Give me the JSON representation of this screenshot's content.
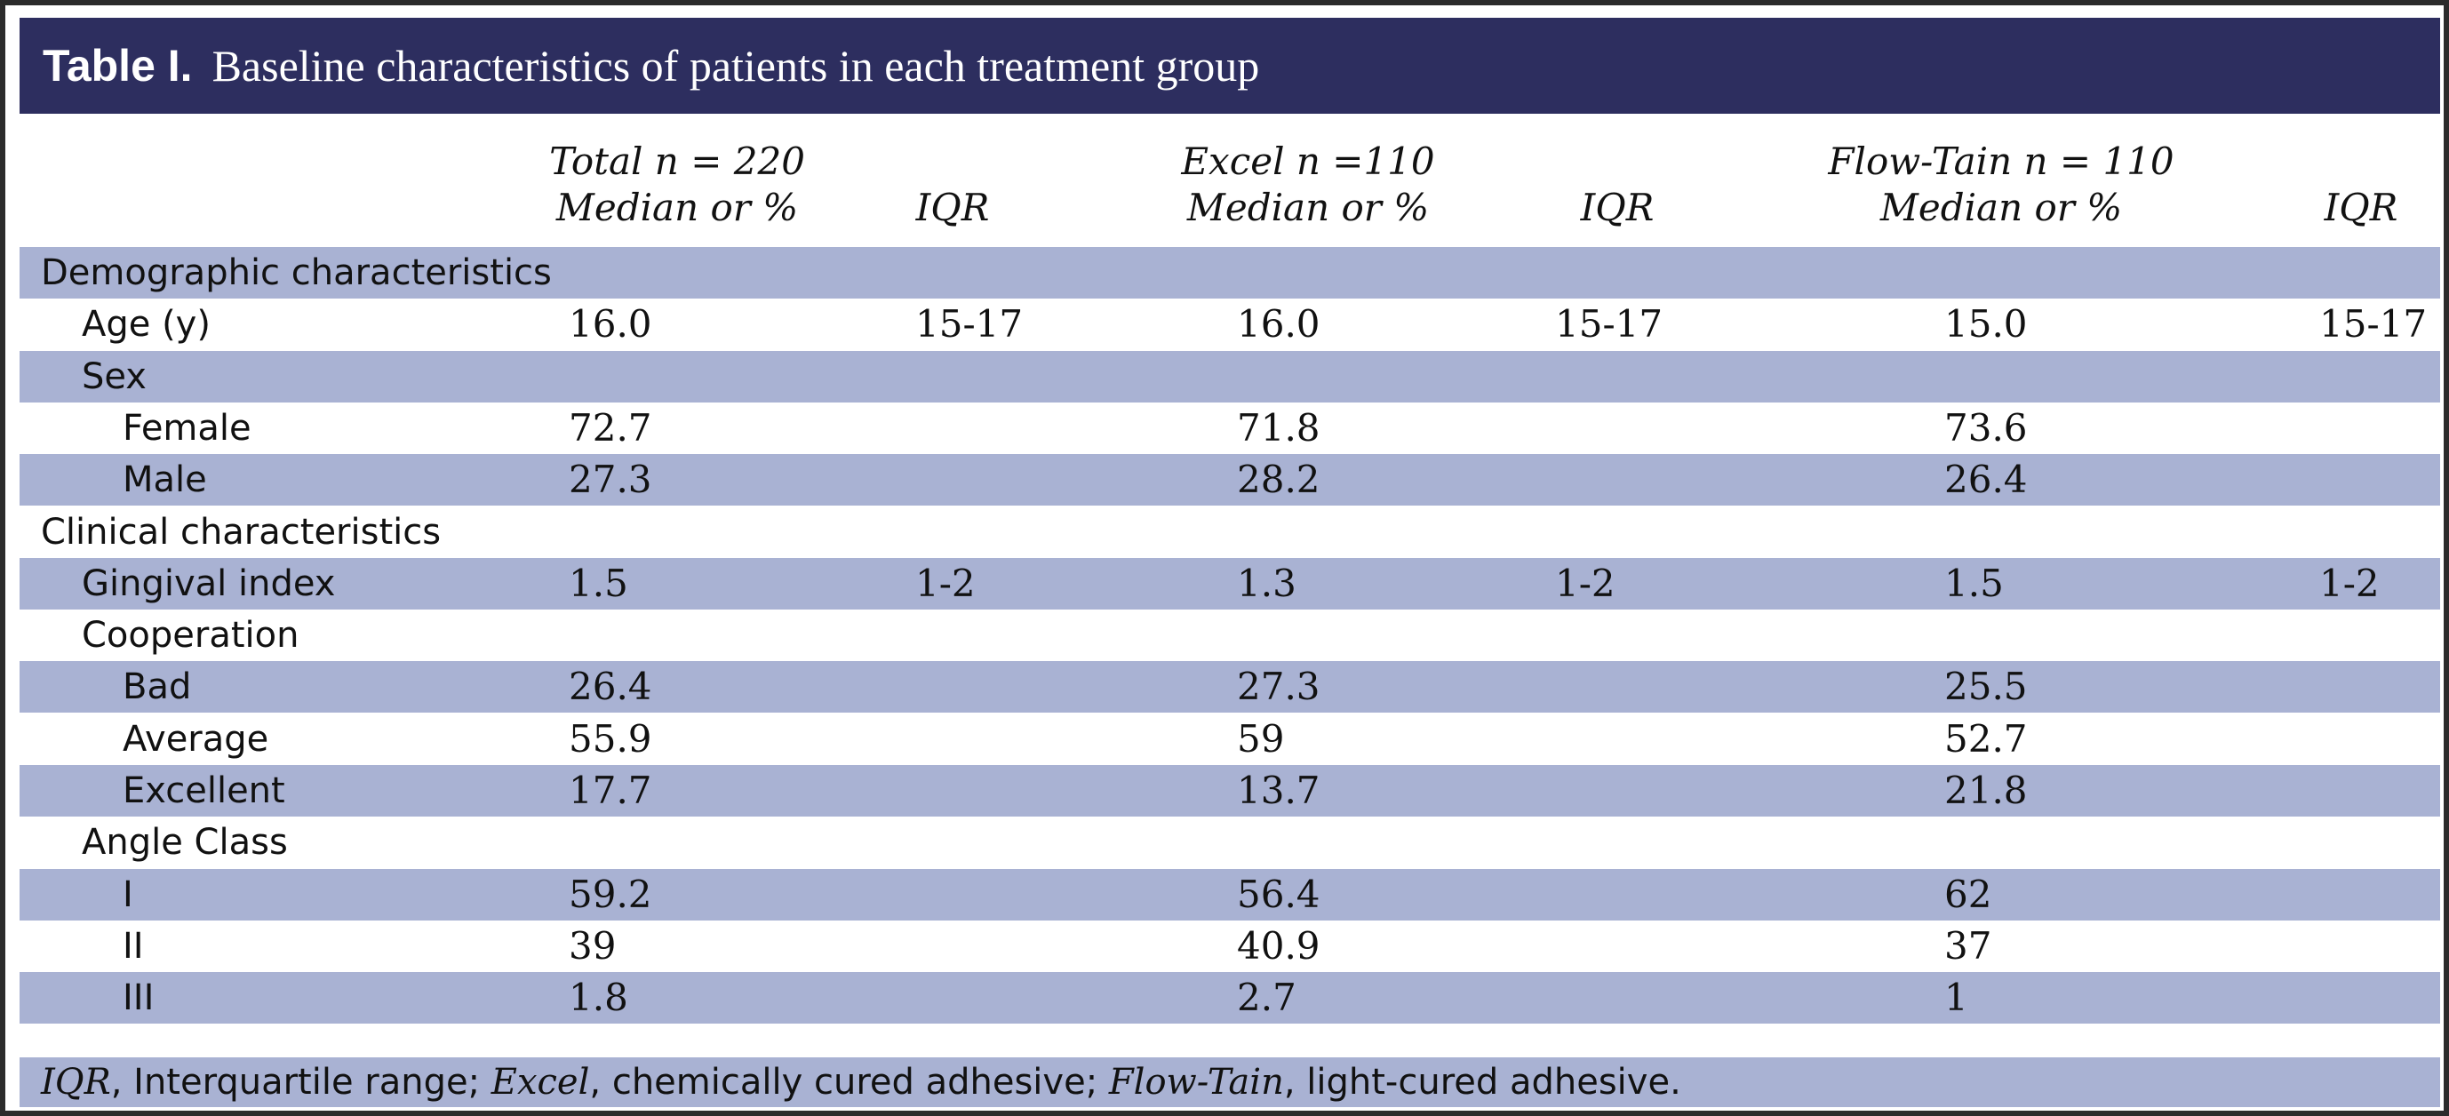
{
  "table": {
    "label": "Table I.",
    "title": "Baseline characteristics of patients in each treatment group",
    "columns": {
      "total": {
        "line1": "Total n = 220",
        "line2": "Median or %"
      },
      "total_iqr": "IQR",
      "excel": {
        "line1": "Excel n =110",
        "line2": "Median or %"
      },
      "excel_iqr": "IQR",
      "flow": {
        "line1": "Flow-Tain n = 110",
        "line2": "Median or %"
      },
      "flow_iqr": "IQR"
    },
    "rows": [
      {
        "label": "Demographic characteristics",
        "level": 0,
        "total": "",
        "total_iqr": "",
        "excel": "",
        "excel_iqr": "",
        "flow": "",
        "flow_iqr": ""
      },
      {
        "label": "Age (y)",
        "level": 1,
        "total": "16.0",
        "total_iqr": "15-17",
        "excel": "16.0",
        "excel_iqr": "15-17",
        "flow": "15.0",
        "flow_iqr": "15-17"
      },
      {
        "label": "Sex",
        "level": 1,
        "total": "",
        "total_iqr": "",
        "excel": "",
        "excel_iqr": "",
        "flow": "",
        "flow_iqr": ""
      },
      {
        "label": "Female",
        "level": 2,
        "total": "72.7",
        "total_iqr": "",
        "excel": "71.8",
        "excel_iqr": "",
        "flow": "73.6",
        "flow_iqr": ""
      },
      {
        "label": "Male",
        "level": 2,
        "total": "27.3",
        "total_iqr": "",
        "excel": "28.2",
        "excel_iqr": "",
        "flow": "26.4",
        "flow_iqr": ""
      },
      {
        "label": "Clinical characteristics",
        "level": 0,
        "total": "",
        "total_iqr": "",
        "excel": "",
        "excel_iqr": "",
        "flow": "",
        "flow_iqr": ""
      },
      {
        "label": "Gingival index",
        "level": 1,
        "total": "1.5",
        "total_iqr": "1-2",
        "excel": "1.3",
        "excel_iqr": "1-2",
        "flow": "1.5",
        "flow_iqr": "1-2"
      },
      {
        "label": "Cooperation",
        "level": 1,
        "total": "",
        "total_iqr": "",
        "excel": "",
        "excel_iqr": "",
        "flow": "",
        "flow_iqr": ""
      },
      {
        "label": "Bad",
        "level": 2,
        "total": "26.4",
        "total_iqr": "",
        "excel": "27.3",
        "excel_iqr": "",
        "flow": "25.5",
        "flow_iqr": ""
      },
      {
        "label": "Average",
        "level": 2,
        "total": "55.9",
        "total_iqr": "",
        "excel": "59",
        "excel_iqr": "",
        "flow": "52.7",
        "flow_iqr": ""
      },
      {
        "label": "Excellent",
        "level": 2,
        "total": "17.7",
        "total_iqr": "",
        "excel": "13.7",
        "excel_iqr": "",
        "flow": "21.8",
        "flow_iqr": ""
      },
      {
        "label": "Angle Class",
        "level": 1,
        "total": "",
        "total_iqr": "",
        "excel": "",
        "excel_iqr": "",
        "flow": "",
        "flow_iqr": ""
      },
      {
        "label": "I",
        "level": 2,
        "total": "59.2",
        "total_iqr": "",
        "excel": "56.4",
        "excel_iqr": "",
        "flow": "62",
        "flow_iqr": ""
      },
      {
        "label": "II",
        "level": 2,
        "total": "39",
        "total_iqr": "",
        "excel": "40.9",
        "excel_iqr": "",
        "flow": "37",
        "flow_iqr": ""
      },
      {
        "label": "III",
        "level": 2,
        "total": "1.8",
        "total_iqr": "",
        "excel": "2.7",
        "excel_iqr": "",
        "flow": "1",
        "flow_iqr": ""
      }
    ],
    "footnote": {
      "abbr1": "IQR",
      "def1": ", Interquartile range; ",
      "abbr2": "Excel",
      "def2": ", chemically cured adhesive; ",
      "abbr3": "Flow-Tain",
      "def3": ", light-cured adhesive."
    },
    "colors": {
      "title_bg": "#2d2e5f",
      "stripe": "#a9b2d3"
    }
  }
}
